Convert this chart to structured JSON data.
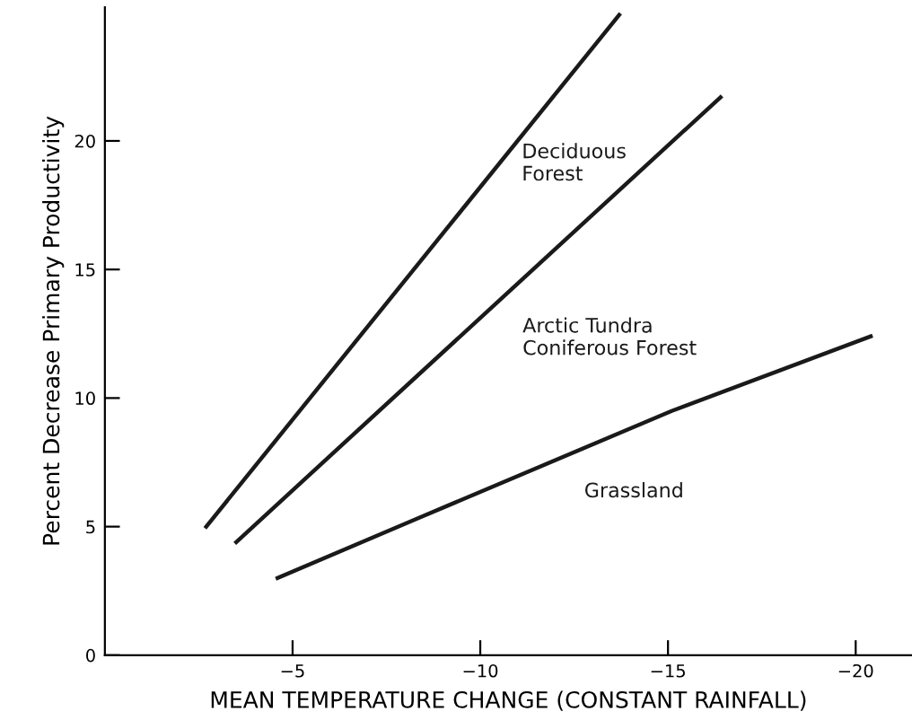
{
  "chart_data": {
    "type": "line",
    "xlabel": "MEAN TEMPERATURE CHANGE (CONSTANT RAINFALL)",
    "ylabel": "Percent Decrease Primary Productivity",
    "series": [
      {
        "name": "Deciduous\nForest",
        "color": "#1a1a1a",
        "x": [
          -2.7,
          -13.7
        ],
        "values": [
          5.0,
          24.9
        ]
      },
      {
        "name": "Arctic Tundra\nConiferous Forest",
        "color": "#1a1a1a",
        "x": [
          -3.5,
          -16.4
        ],
        "values": [
          4.4,
          21.7
        ]
      },
      {
        "name": "Grassland",
        "color": "#1a1a1a",
        "x": [
          -4.6,
          -8.3,
          -15.1,
          -20.4
        ],
        "values": [
          3.0,
          5.3,
          9.5,
          12.4
        ]
      }
    ],
    "xlim": [
      0,
      -21.5
    ],
    "ylim": [
      0,
      25.2
    ],
    "xticks": [
      -5,
      -10,
      -15,
      -20
    ],
    "yticks": [
      0,
      5,
      10,
      15,
      20
    ],
    "grid": false,
    "legend": false,
    "marker": "none",
    "line_style": "solid"
  }
}
